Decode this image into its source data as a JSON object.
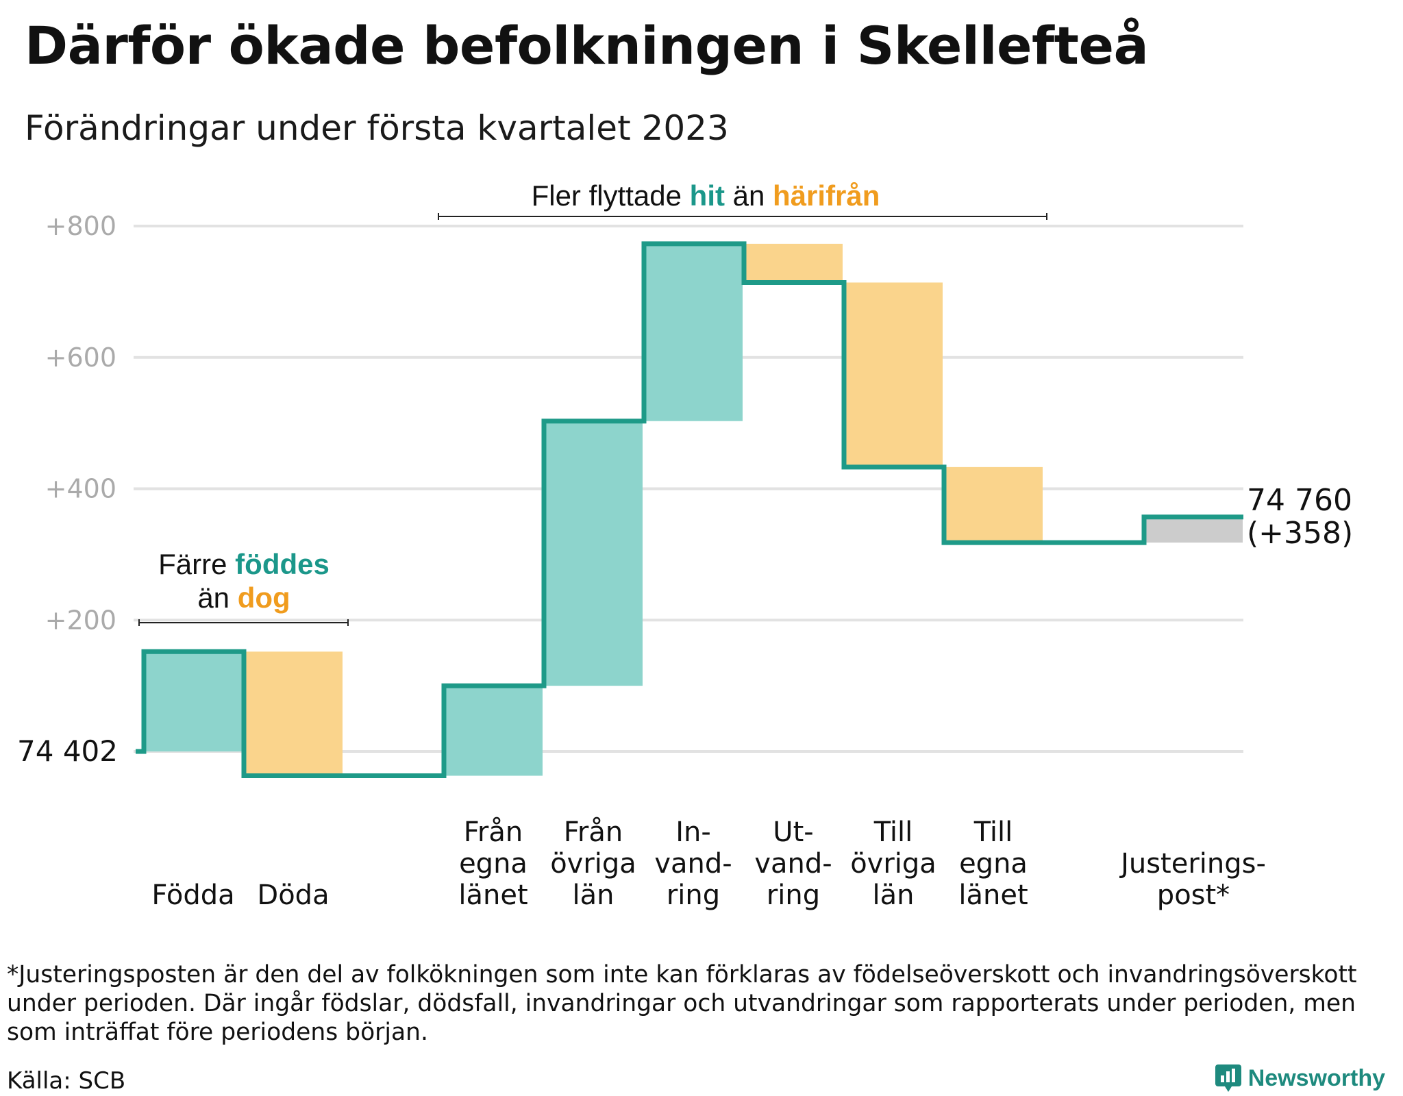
{
  "title": "Därför ökade befolkningen i Skellefteå",
  "subtitle": "Förändringar under första kvartalet 2023",
  "colors": {
    "increase": "#8dd4cc",
    "decrease": "#fad48c",
    "adjustment": "#cccccc",
    "line": "#1e9a88",
    "teal_text": "#1b978a",
    "orange_text": "#f09c1e",
    "gridline": "#e2e2e2",
    "tick_text": "#aaaaaa"
  },
  "chart_data": {
    "type": "waterfall",
    "start_label": "74 402",
    "start_value": 0,
    "end_label": "74 760",
    "end_change_label": "(+358)",
    "yticks": [
      "+800",
      "+600",
      "+400",
      "+200"
    ],
    "ytick_values": [
      800,
      600,
      400,
      200
    ],
    "ylim": [
      -60,
      800
    ],
    "categories": [
      {
        "lines": [
          "Födda"
        ],
        "value": 152
      },
      {
        "lines": [
          "Döda"
        ],
        "value": -189
      },
      {
        "lines": [
          ""
        ],
        "value": 0
      },
      {
        "lines": [
          "Från",
          "egna",
          "länet"
        ],
        "value": 137
      },
      {
        "lines": [
          "Från",
          "övriga",
          "län"
        ],
        "value": 403
      },
      {
        "lines": [
          "In-",
          "vand-",
          "ring"
        ],
        "value": 270
      },
      {
        "lines": [
          "Ut-",
          "vand-",
          "ring"
        ],
        "value": -59
      },
      {
        "lines": [
          "Till",
          "övriga",
          "län"
        ],
        "value": -281
      },
      {
        "lines": [
          "Till",
          "egna",
          "länet"
        ],
        "value": -115
      },
      {
        "lines": [
          ""
        ],
        "value": 0
      },
      {
        "lines": [
          "Justerings-",
          "post*"
        ],
        "value": 39
      }
    ],
    "annotations": {
      "births_group": {
        "line1_pre": "Färre ",
        "line1_hl": "föddes",
        "line2_pre": "än ",
        "line2_hl": "dog"
      },
      "migration_group": {
        "pre": "Fler flyttade ",
        "hl1": "hit",
        "mid": " än ",
        "hl2": "härifrån"
      }
    }
  },
  "footnote": "*Justeringsposten är den del av folkökningen som inte kan förklaras av födelseöverskott och invandringsöverskott under perioden. Där ingår födslar, dödsfall, invandringar och utvandringar som rapporterats under perioden, men som inträffat före periodens början.",
  "source": "Källa: SCB",
  "brand": "Newsworthy",
  "brand_icon": "newsworthy-logo-icon"
}
